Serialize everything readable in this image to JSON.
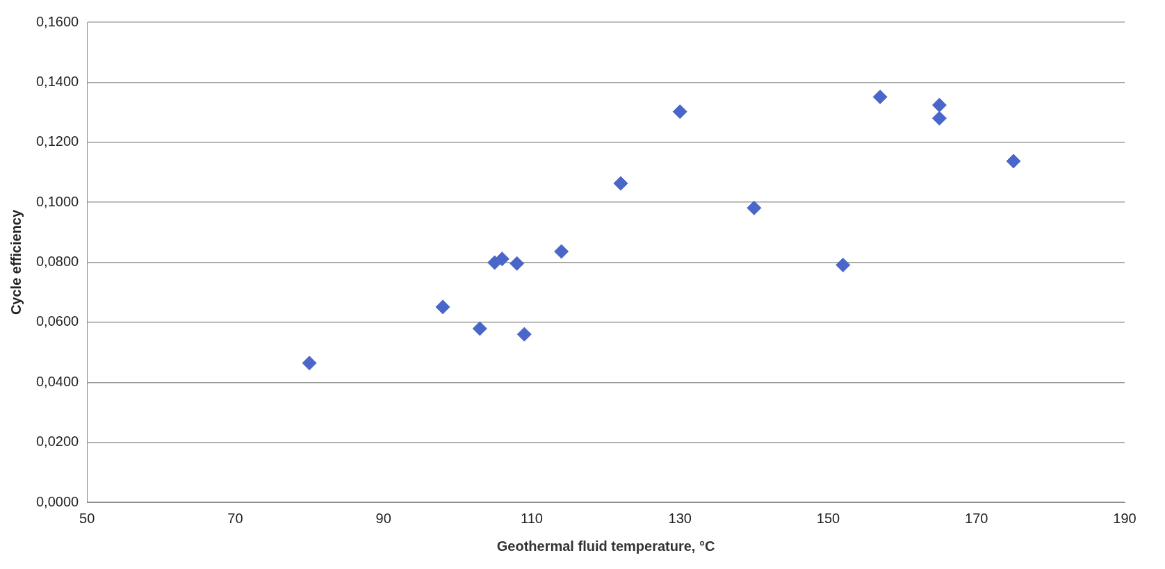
{
  "chart_data": {
    "type": "scatter",
    "xlabel": "Geothermal fluid temperature, °C",
    "ylabel": "Cycle efficiency",
    "series": [
      {
        "color": "#4a66c8",
        "x": [
          80,
          98,
          103,
          105,
          106,
          108,
          109,
          114,
          122,
          130,
          140,
          152,
          157,
          165,
          165,
          175
        ],
        "values": [
          0.0464,
          0.0651,
          0.0579,
          0.0799,
          0.0811,
          0.0796,
          0.056,
          0.0836,
          0.1063,
          0.1302,
          0.0981,
          0.0791,
          0.1351,
          0.1324,
          0.128,
          0.1137
        ]
      }
    ],
    "xlim": [
      50,
      190
    ],
    "xticks": [
      50,
      70,
      90,
      110,
      130,
      150,
      170,
      190
    ],
    "ylim": [
      0,
      0.16
    ],
    "yticks": [
      {
        "value": 0,
        "label": "0,0000"
      },
      {
        "value": 0.02,
        "label": "0,0200"
      },
      {
        "value": 0.04,
        "label": "0,0400"
      },
      {
        "value": 0.06,
        "label": "0,0600"
      },
      {
        "value": 0.08,
        "label": "0,0800"
      },
      {
        "value": 0.1,
        "label": "0,1000"
      },
      {
        "value": 0.12,
        "label": "0,1200"
      },
      {
        "value": 0.14,
        "label": "0,1400"
      },
      {
        "value": 0.16,
        "label": "0,1600"
      }
    ],
    "grid": "y",
    "marker": "diamond",
    "legend": false
  }
}
